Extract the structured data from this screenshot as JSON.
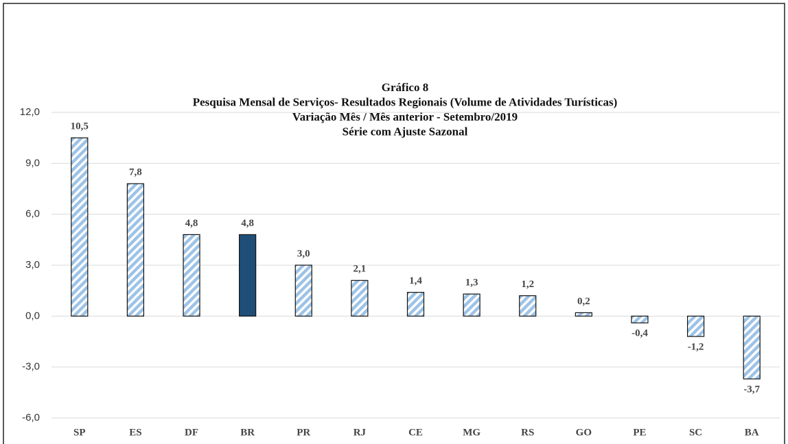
{
  "chart_data": {
    "type": "bar",
    "title": [
      "Gráfico 8",
      "Pesquisa Mensal de Serviços- Resultados Regionais (Volume de Atividades Turísticas)",
      "Variação Mês / Mês anterior - Setembro/2019",
      "Série com Ajuste Sazonal"
    ],
    "categories": [
      "SP",
      "ES",
      "DF",
      "BR",
      "PR",
      "RJ",
      "CE",
      "MG",
      "RS",
      "GO",
      "PE",
      "SC",
      "BA"
    ],
    "values": [
      10.5,
      7.8,
      4.8,
      4.8,
      3.0,
      2.1,
      1.4,
      1.3,
      1.2,
      0.2,
      -0.4,
      -1.2,
      -3.7
    ],
    "value_labels": [
      "10,5",
      "7,8",
      "4,8",
      "4,8",
      "3,0",
      "2,1",
      "1,4",
      "1,3",
      "1,2",
      "0,2",
      "-0,4",
      "-1,2",
      "-3,7"
    ],
    "colors": [
      "#9dc3e6",
      "#9dc3e6",
      "#9dc3e6",
      "#1f4e79",
      "#9dc3e6",
      "#9dc3e6",
      "#9dc3e6",
      "#9dc3e6",
      "#9dc3e6",
      "#9dc3e6",
      "#9dc3e6",
      "#9dc3e6",
      "#9dc3e6"
    ],
    "hatched": [
      true,
      true,
      true,
      false,
      true,
      true,
      true,
      true,
      true,
      true,
      true,
      true,
      true
    ],
    "ylim": [
      -6,
      12
    ],
    "yticks": [
      {
        "value": -6,
        "label": "-6,0"
      },
      {
        "value": -3,
        "label": "-3,0"
      },
      {
        "value": 0,
        "label": "0,0"
      },
      {
        "value": 3,
        "label": "3,0"
      },
      {
        "value": 6,
        "label": "6,0"
      },
      {
        "value": 9,
        "label": "9,0"
      },
      {
        "value": 12,
        "label": "12,0"
      }
    ],
    "grid": true
  }
}
